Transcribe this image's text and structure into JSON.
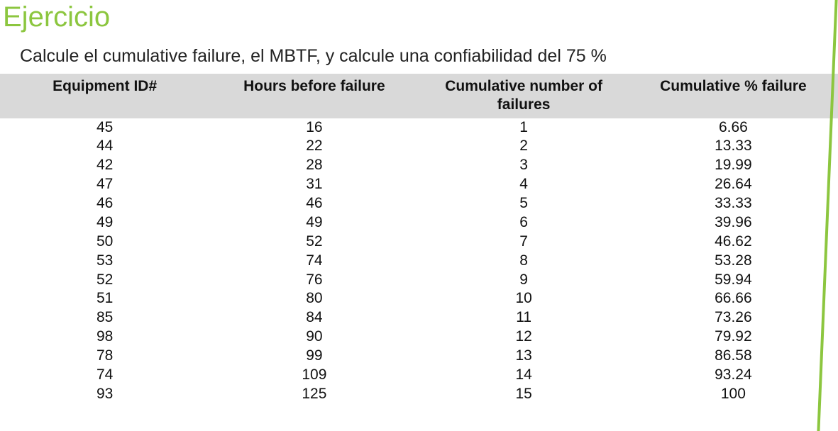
{
  "heading": {
    "title": "Ejercicio",
    "subtitle": "Calcule el cumulative failure, el MBTF, y calcule una confiabilidad del 75 %"
  },
  "table": {
    "columns": [
      "Equipment ID#",
      "Hours before failure",
      "Cumulative number of failures",
      "Cumulative % failure"
    ],
    "header_bg": "#d9d9d9",
    "header_fontsize": 21,
    "body_fontsize": 21,
    "rows": [
      {
        "id": 45,
        "hours": 16,
        "cum_n": 1,
        "cum_pct": "6.66"
      },
      {
        "id": 44,
        "hours": 22,
        "cum_n": 2,
        "cum_pct": "13.33"
      },
      {
        "id": 42,
        "hours": 28,
        "cum_n": 3,
        "cum_pct": "19.99"
      },
      {
        "id": 47,
        "hours": 31,
        "cum_n": 4,
        "cum_pct": "26.64"
      },
      {
        "id": 46,
        "hours": 46,
        "cum_n": 5,
        "cum_pct": "33.33"
      },
      {
        "id": 49,
        "hours": 49,
        "cum_n": 6,
        "cum_pct": "39.96"
      },
      {
        "id": 50,
        "hours": 52,
        "cum_n": 7,
        "cum_pct": "46.62"
      },
      {
        "id": 53,
        "hours": 74,
        "cum_n": 8,
        "cum_pct": "53.28"
      },
      {
        "id": 52,
        "hours": 76,
        "cum_n": 9,
        "cum_pct": "59.94"
      },
      {
        "id": 51,
        "hours": 80,
        "cum_n": 10,
        "cum_pct": "66.66"
      },
      {
        "id": 85,
        "hours": 84,
        "cum_n": 11,
        "cum_pct": "73.26"
      },
      {
        "id": 98,
        "hours": 90,
        "cum_n": 12,
        "cum_pct": "79.92"
      },
      {
        "id": 78,
        "hours": 99,
        "cum_n": 13,
        "cum_pct": "86.58"
      },
      {
        "id": 74,
        "hours": 109,
        "cum_n": 14,
        "cum_pct": "93.24"
      },
      {
        "id": 93,
        "hours": 125,
        "cum_n": 15,
        "cum_pct": "100"
      }
    ]
  },
  "accent": {
    "stroke_color": "#8cc63f",
    "stroke_width": 4
  }
}
